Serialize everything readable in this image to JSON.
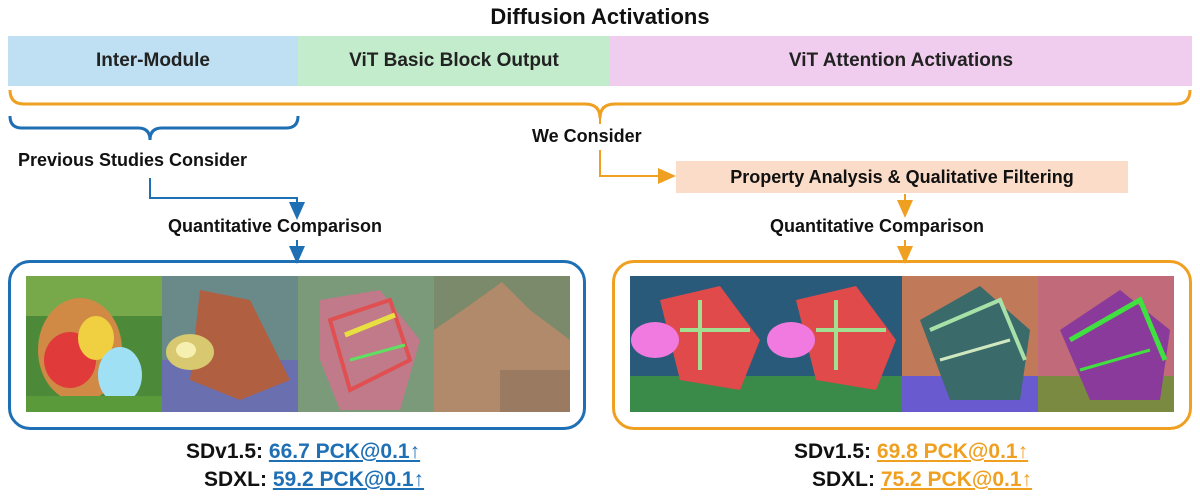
{
  "title": "Diffusion Activations",
  "bands": [
    {
      "label": "Inter-Module",
      "color": "#bfe0f2"
    },
    {
      "label": "ViT Basic Block Output",
      "color": "#c2eccb"
    },
    {
      "label": "ViT Attention Activations",
      "color": "#f0cdee"
    }
  ],
  "colors": {
    "blue": "#1f6fb5",
    "orange": "#f0a020",
    "highlight": "#fbdcc8"
  },
  "left": {
    "caption": "Previous Studies Consider",
    "step": "Quantitative Comparison",
    "metrics": [
      {
        "model": "SDv1.5:",
        "value": "66.7 PCK@0.1↑"
      },
      {
        "model": "SDXL:",
        "value": "59.2 PCK@0.1↑"
      }
    ]
  },
  "right": {
    "caption": "We Consider",
    "filter": "Property Analysis & Qualitative Filtering",
    "step": "Quantitative Comparison",
    "metrics": [
      {
        "model": "SDv1.5:",
        "value": "69.8 PCK@0.1↑"
      },
      {
        "model": "SDXL:",
        "value": "75.2 PCK@0.1↑"
      }
    ]
  }
}
